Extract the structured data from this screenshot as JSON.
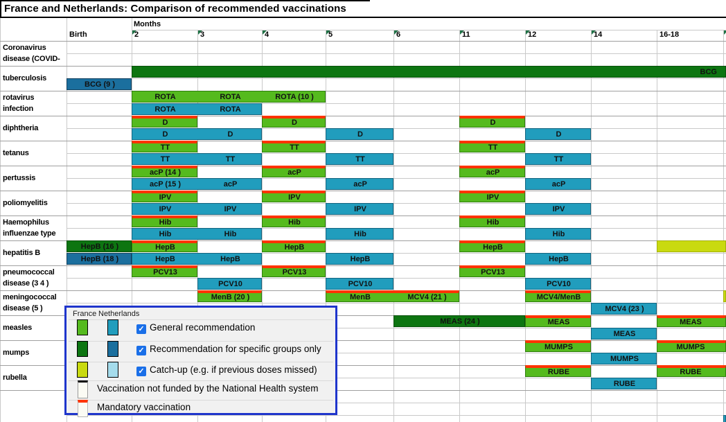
{
  "title": "France and Netherlands: Comparison of recommended vaccinations",
  "header": {
    "months_label": "Months",
    "columns": [
      {
        "id": "Birth",
        "label": "Birth",
        "marker": false
      },
      {
        "id": "2",
        "label": "2",
        "marker": true
      },
      {
        "id": "3",
        "label": "3",
        "marker": true
      },
      {
        "id": "4",
        "label": "4",
        "marker": true
      },
      {
        "id": "5",
        "label": "5",
        "marker": true
      },
      {
        "id": "6",
        "label": "6",
        "marker": true
      },
      {
        "id": "11",
        "label": "11",
        "marker": true
      },
      {
        "id": "12",
        "label": "12",
        "marker": true
      },
      {
        "id": "14",
        "label": "14",
        "marker": true
      },
      {
        "id": "16-18",
        "label": "16-18",
        "marker": false
      },
      {
        "id": "edge",
        "label": "",
        "marker": true
      }
    ]
  },
  "colors": {
    "france_general": "#55ba1e",
    "netherlands_general": "#219dbd",
    "france_specific": "#0d7511",
    "netherlands_specific": "#1b6f9e",
    "france_catchup": "#c9da10",
    "netherlands_catchup": "#a5dcec",
    "mandatory_red": "#ff3300",
    "legend_border_blue": "#1f35cc",
    "checkbox_blue": "#1a6fe8",
    "comment_marker_green": "#1e7145"
  },
  "diseases": [
    {
      "label": [
        "Coronavirus",
        "disease (COVID-"
      ],
      "fr": [],
      "nl": []
    },
    {
      "label": [
        "tuberculosis"
      ],
      "fr": [
        {
          "s": "2",
          "e": "edge",
          "st": "fr-spec",
          "t": [
            {
              "c": "16-18",
              "n": 2,
              "x": "BCG",
              "a": "r"
            }
          ]
        }
      ],
      "nl": [
        {
          "s": "Birth",
          "e": "Birth",
          "st": "nl-spec",
          "t": [
            {
              "c": "Birth",
              "x": "BCG (9 )"
            }
          ]
        }
      ]
    },
    {
      "label": [
        "rotavirus",
        "infection"
      ],
      "fr": [
        {
          "s": "2",
          "e": "4",
          "st": "fr-gen",
          "t": [
            {
              "c": "2",
              "x": "ROTA"
            },
            {
              "c": "3",
              "x": "ROTA"
            },
            {
              "c": "4",
              "x": "ROTA (10 )"
            }
          ]
        }
      ],
      "nl": [
        {
          "s": "2",
          "e": "3",
          "st": "nl-gen",
          "t": [
            {
              "c": "2",
              "x": "ROTA"
            },
            {
              "c": "3",
              "x": "ROTA"
            }
          ]
        }
      ]
    },
    {
      "label": [
        "diphtheria"
      ],
      "fr": [
        {
          "s": "2",
          "e": "2",
          "st": "fr-gen",
          "m": true,
          "t": [
            {
              "c": "2",
              "x": "D"
            }
          ]
        },
        {
          "s": "4",
          "e": "4",
          "st": "fr-gen",
          "m": true,
          "t": [
            {
              "c": "4",
              "x": "D"
            }
          ]
        },
        {
          "s": "11",
          "e": "11",
          "st": "fr-gen",
          "m": true,
          "t": [
            {
              "c": "11",
              "x": "D"
            }
          ]
        }
      ],
      "nl": [
        {
          "s": "2",
          "e": "3",
          "st": "nl-gen",
          "t": [
            {
              "c": "2",
              "x": "D"
            },
            {
              "c": "3",
              "x": "D"
            }
          ]
        },
        {
          "s": "5",
          "e": "5",
          "st": "nl-gen",
          "t": [
            {
              "c": "5",
              "x": "D"
            }
          ]
        },
        {
          "s": "12",
          "e": "12",
          "st": "nl-gen",
          "t": [
            {
              "c": "12",
              "x": "D"
            }
          ]
        }
      ]
    },
    {
      "label": [
        "tetanus"
      ],
      "fr": [
        {
          "s": "2",
          "e": "2",
          "st": "fr-gen",
          "m": true,
          "t": [
            {
              "c": "2",
              "x": "TT"
            }
          ]
        },
        {
          "s": "4",
          "e": "4",
          "st": "fr-gen",
          "m": true,
          "t": [
            {
              "c": "4",
              "x": "TT"
            }
          ]
        },
        {
          "s": "11",
          "e": "11",
          "st": "fr-gen",
          "m": true,
          "t": [
            {
              "c": "11",
              "x": "TT"
            }
          ]
        }
      ],
      "nl": [
        {
          "s": "2",
          "e": "3",
          "st": "nl-gen",
          "t": [
            {
              "c": "2",
              "x": "TT"
            },
            {
              "c": "3",
              "x": "TT"
            }
          ]
        },
        {
          "s": "5",
          "e": "5",
          "st": "nl-gen",
          "t": [
            {
              "c": "5",
              "x": "TT"
            }
          ]
        },
        {
          "s": "12",
          "e": "12",
          "st": "nl-gen",
          "t": [
            {
              "c": "12",
              "x": "TT"
            }
          ]
        }
      ]
    },
    {
      "label": [
        "pertussis"
      ],
      "fr": [
        {
          "s": "2",
          "e": "2",
          "st": "fr-gen",
          "m": true,
          "t": [
            {
              "c": "2",
              "x": "acP (14 )"
            }
          ]
        },
        {
          "s": "4",
          "e": "4",
          "st": "fr-gen",
          "m": true,
          "t": [
            {
              "c": "4",
              "x": "acP"
            }
          ]
        },
        {
          "s": "11",
          "e": "11",
          "st": "fr-gen",
          "m": true,
          "t": [
            {
              "c": "11",
              "x": "acP"
            }
          ]
        }
      ],
      "nl": [
        {
          "s": "2",
          "e": "3",
          "st": "nl-gen",
          "t": [
            {
              "c": "2",
              "x": "acP (15 )"
            },
            {
              "c": "3",
              "x": "acP"
            }
          ]
        },
        {
          "s": "5",
          "e": "5",
          "st": "nl-gen",
          "t": [
            {
              "c": "5",
              "x": "acP"
            }
          ]
        },
        {
          "s": "12",
          "e": "12",
          "st": "nl-gen",
          "t": [
            {
              "c": "12",
              "x": "acP"
            }
          ]
        }
      ]
    },
    {
      "label": [
        "poliomyelitis"
      ],
      "fr": [
        {
          "s": "2",
          "e": "2",
          "st": "fr-gen",
          "m": true,
          "t": [
            {
              "c": "2",
              "x": "IPV"
            }
          ]
        },
        {
          "s": "4",
          "e": "4",
          "st": "fr-gen",
          "m": true,
          "t": [
            {
              "c": "4",
              "x": "IPV"
            }
          ]
        },
        {
          "s": "11",
          "e": "11",
          "st": "fr-gen",
          "m": true,
          "t": [
            {
              "c": "11",
              "x": "IPV"
            }
          ]
        }
      ],
      "nl": [
        {
          "s": "2",
          "e": "3",
          "st": "nl-gen",
          "t": [
            {
              "c": "2",
              "x": "IPV"
            },
            {
              "c": "3",
              "x": "IPV"
            }
          ]
        },
        {
          "s": "5",
          "e": "5",
          "st": "nl-gen",
          "t": [
            {
              "c": "5",
              "x": "IPV"
            }
          ]
        },
        {
          "s": "12",
          "e": "12",
          "st": "nl-gen",
          "t": [
            {
              "c": "12",
              "x": "IPV"
            }
          ]
        }
      ]
    },
    {
      "label": [
        "Haemophilus",
        "influenzae type"
      ],
      "fr": [
        {
          "s": "2",
          "e": "2",
          "st": "fr-gen",
          "m": true,
          "t": [
            {
              "c": "2",
              "x": "Hib"
            }
          ]
        },
        {
          "s": "4",
          "e": "4",
          "st": "fr-gen",
          "m": true,
          "t": [
            {
              "c": "4",
              "x": "Hib"
            }
          ]
        },
        {
          "s": "11",
          "e": "11",
          "st": "fr-gen",
          "m": true,
          "t": [
            {
              "c": "11",
              "x": "Hib"
            }
          ]
        }
      ],
      "nl": [
        {
          "s": "2",
          "e": "3",
          "st": "nl-gen",
          "t": [
            {
              "c": "2",
              "x": "Hib"
            },
            {
              "c": "3",
              "x": "Hib"
            }
          ]
        },
        {
          "s": "5",
          "e": "5",
          "st": "nl-gen",
          "t": [
            {
              "c": "5",
              "x": "Hib"
            }
          ]
        },
        {
          "s": "12",
          "e": "12",
          "st": "nl-gen",
          "t": [
            {
              "c": "12",
              "x": "Hib"
            }
          ]
        }
      ]
    },
    {
      "label": [
        "hepatitis B"
      ],
      "fr": [
        {
          "s": "Birth",
          "e": "Birth",
          "st": "fr-spec",
          "t": [
            {
              "c": "Birth",
              "x": "HepB (16 )"
            }
          ]
        },
        {
          "s": "2",
          "e": "2",
          "st": "fr-gen",
          "m": true,
          "t": [
            {
              "c": "2",
              "x": "HepB"
            }
          ]
        },
        {
          "s": "4",
          "e": "4",
          "st": "fr-gen",
          "m": true,
          "t": [
            {
              "c": "4",
              "x": "HepB"
            }
          ]
        },
        {
          "s": "11",
          "e": "11",
          "st": "fr-gen",
          "m": true,
          "t": [
            {
              "c": "11",
              "x": "HepB"
            }
          ]
        },
        {
          "s": "16-18",
          "e": "edge",
          "st": "fr-catch"
        }
      ],
      "nl": [
        {
          "s": "Birth",
          "e": "Birth",
          "st": "nl-spec",
          "t": [
            {
              "c": "Birth",
              "x": "HepB (18 )"
            }
          ]
        },
        {
          "s": "2",
          "e": "3",
          "st": "nl-gen",
          "t": [
            {
              "c": "2",
              "x": "HepB"
            },
            {
              "c": "3",
              "x": "HepB"
            }
          ]
        },
        {
          "s": "5",
          "e": "5",
          "st": "nl-gen",
          "t": [
            {
              "c": "5",
              "x": "HepB"
            }
          ]
        },
        {
          "s": "12",
          "e": "12",
          "st": "nl-gen",
          "t": [
            {
              "c": "12",
              "x": "HepB"
            }
          ]
        }
      ]
    },
    {
      "label": [
        "pneumococcal",
        "disease (3 4 )"
      ],
      "fr": [
        {
          "s": "2",
          "e": "2",
          "st": "fr-gen",
          "m": true,
          "t": [
            {
              "c": "2",
              "x": "PCV13"
            }
          ]
        },
        {
          "s": "4",
          "e": "4",
          "st": "fr-gen",
          "m": true,
          "t": [
            {
              "c": "4",
              "x": "PCV13"
            }
          ]
        },
        {
          "s": "11",
          "e": "11",
          "st": "fr-gen",
          "m": true,
          "t": [
            {
              "c": "11",
              "x": "PCV13"
            }
          ]
        }
      ],
      "nl": [
        {
          "s": "3",
          "e": "3",
          "st": "nl-gen",
          "t": [
            {
              "c": "3",
              "x": "PCV10"
            }
          ]
        },
        {
          "s": "5",
          "e": "5",
          "st": "nl-gen",
          "t": [
            {
              "c": "5",
              "x": "PCV10"
            }
          ]
        },
        {
          "s": "12",
          "e": "12",
          "st": "nl-gen",
          "t": [
            {
              "c": "12",
              "x": "PCV10"
            }
          ]
        }
      ]
    },
    {
      "label": [
        "meningococcal",
        "disease (5 )"
      ],
      "fr": [
        {
          "s": "3",
          "e": "3",
          "st": "fr-gen",
          "m": true,
          "t": [
            {
              "c": "3",
              "x": "MenB (20 )"
            }
          ]
        },
        {
          "s": "5",
          "e": "6",
          "st": "fr-gen",
          "m": true,
          "t": [
            {
              "c": "5",
              "x": "MenB"
            },
            {
              "c": "6",
              "x": "MCV4 (21 )"
            }
          ]
        },
        {
          "s": "12",
          "e": "12",
          "st": "fr-gen",
          "m": true,
          "t": [
            {
              "c": "12",
              "x": "MCV4/MenB"
            }
          ]
        },
        {
          "s": "edge",
          "e": "edge",
          "st": "fr-catch"
        }
      ],
      "nl": [
        {
          "s": "14",
          "e": "14",
          "st": "nl-gen",
          "t": [
            {
              "c": "14",
              "x": "MCV4 (23 )"
            }
          ]
        }
      ]
    },
    {
      "label": [
        "measles"
      ],
      "fr": [
        {
          "s": "6",
          "e": "11",
          "st": "fr-spec",
          "t": [
            {
              "c": "6",
              "n": 2,
              "x": "MEAS (24 )"
            }
          ]
        },
        {
          "s": "12",
          "e": "12",
          "st": "fr-gen",
          "m": true,
          "t": [
            {
              "c": "12",
              "x": "MEAS"
            }
          ]
        },
        {
          "s": "16-18",
          "e": "edge",
          "st": "fr-gen",
          "m": true,
          "t": [
            {
              "c": "16-18",
              "x": "MEAS"
            }
          ]
        }
      ],
      "nl": [
        {
          "s": "14",
          "e": "14",
          "st": "nl-gen",
          "t": [
            {
              "c": "14",
              "x": "MEAS"
            }
          ]
        }
      ]
    },
    {
      "label": [
        "mumps"
      ],
      "fr": [
        {
          "s": "12",
          "e": "12",
          "st": "fr-gen",
          "m": true,
          "t": [
            {
              "c": "12",
              "x": "MUMPS"
            }
          ]
        },
        {
          "s": "16-18",
          "e": "edge",
          "st": "fr-gen",
          "m": true,
          "t": [
            {
              "c": "16-18",
              "x": "MUMPS"
            }
          ]
        }
      ],
      "nl": [
        {
          "s": "14",
          "e": "14",
          "st": "nl-gen",
          "t": [
            {
              "c": "14",
              "x": "MUMPS"
            }
          ]
        }
      ]
    },
    {
      "label": [
        "rubella"
      ],
      "fr": [
        {
          "s": "12",
          "e": "12",
          "st": "fr-gen",
          "m": true,
          "t": [
            {
              "c": "12",
              "x": "RUBE"
            }
          ]
        },
        {
          "s": "16-18",
          "e": "edge",
          "st": "fr-gen",
          "m": true,
          "t": [
            {
              "c": "16-18",
              "x": "RUBE"
            }
          ]
        }
      ],
      "nl": [
        {
          "s": "14",
          "e": "14",
          "st": "nl-gen",
          "t": [
            {
              "c": "14",
              "x": "RUBE"
            }
          ]
        }
      ]
    }
  ],
  "extras": [
    {
      "row": 30,
      "s": "edge",
      "e": "edge",
      "st": "nl-gen"
    }
  ],
  "legend": {
    "country_headers": [
      "France",
      "Netherlands"
    ],
    "checkmark": "✓",
    "rows": [
      {
        "fr": "fr-gen",
        "nl": "nl-gen",
        "checkbox": true,
        "label": "General recommendation"
      },
      {
        "fr": "fr-spec",
        "nl": "nl-spec",
        "checkbox": true,
        "label": "Recommendation for specific groups only"
      },
      {
        "fr": "fr-catch",
        "nl": "nl-catch",
        "checkbox": true,
        "label": "Catch-up (e.g. if previous doses missed)"
      },
      {
        "swatch": "not-funded",
        "label": "Vaccination not funded by the National Health system"
      },
      {
        "swatch": "mandatory",
        "label": "Mandatory vaccination"
      }
    ]
  }
}
